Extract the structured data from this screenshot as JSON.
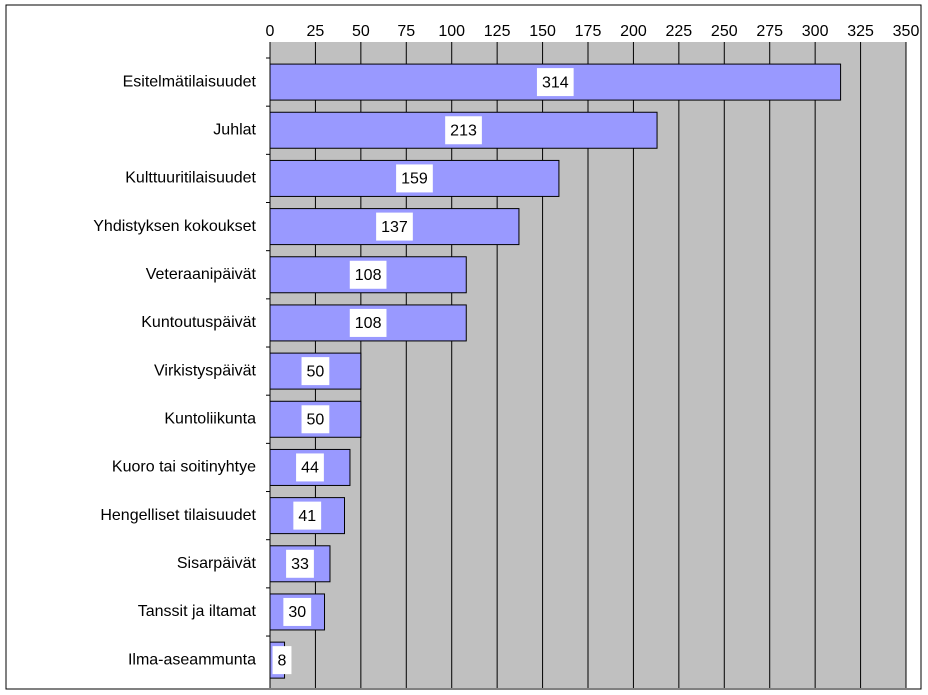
{
  "chart_data": {
    "type": "barh",
    "categories": [
      "Esitelmätilaisuudet",
      "Juhlat",
      "Kulttuuritilaisuudet",
      "Yhdistyksen kokoukset",
      "Veteraanipäivät",
      "Kuntoutuspäivät",
      "Virkistyspäivät",
      "Kuntoliikunta",
      "Kuoro tai soitinyhtye",
      "Hengelliset tilaisuudet",
      "Sisarpäivät",
      "Tanssit ja iltamat",
      "Ilma-aseammunta"
    ],
    "values": [
      314,
      213,
      159,
      137,
      108,
      108,
      50,
      50,
      44,
      41,
      33,
      30,
      8
    ],
    "color": "#9999ff",
    "xlim": [
      0,
      350
    ],
    "xticks": [
      0,
      25,
      50,
      75,
      100,
      125,
      150,
      175,
      200,
      225,
      250,
      275,
      300,
      325,
      350
    ],
    "grid": true
  }
}
